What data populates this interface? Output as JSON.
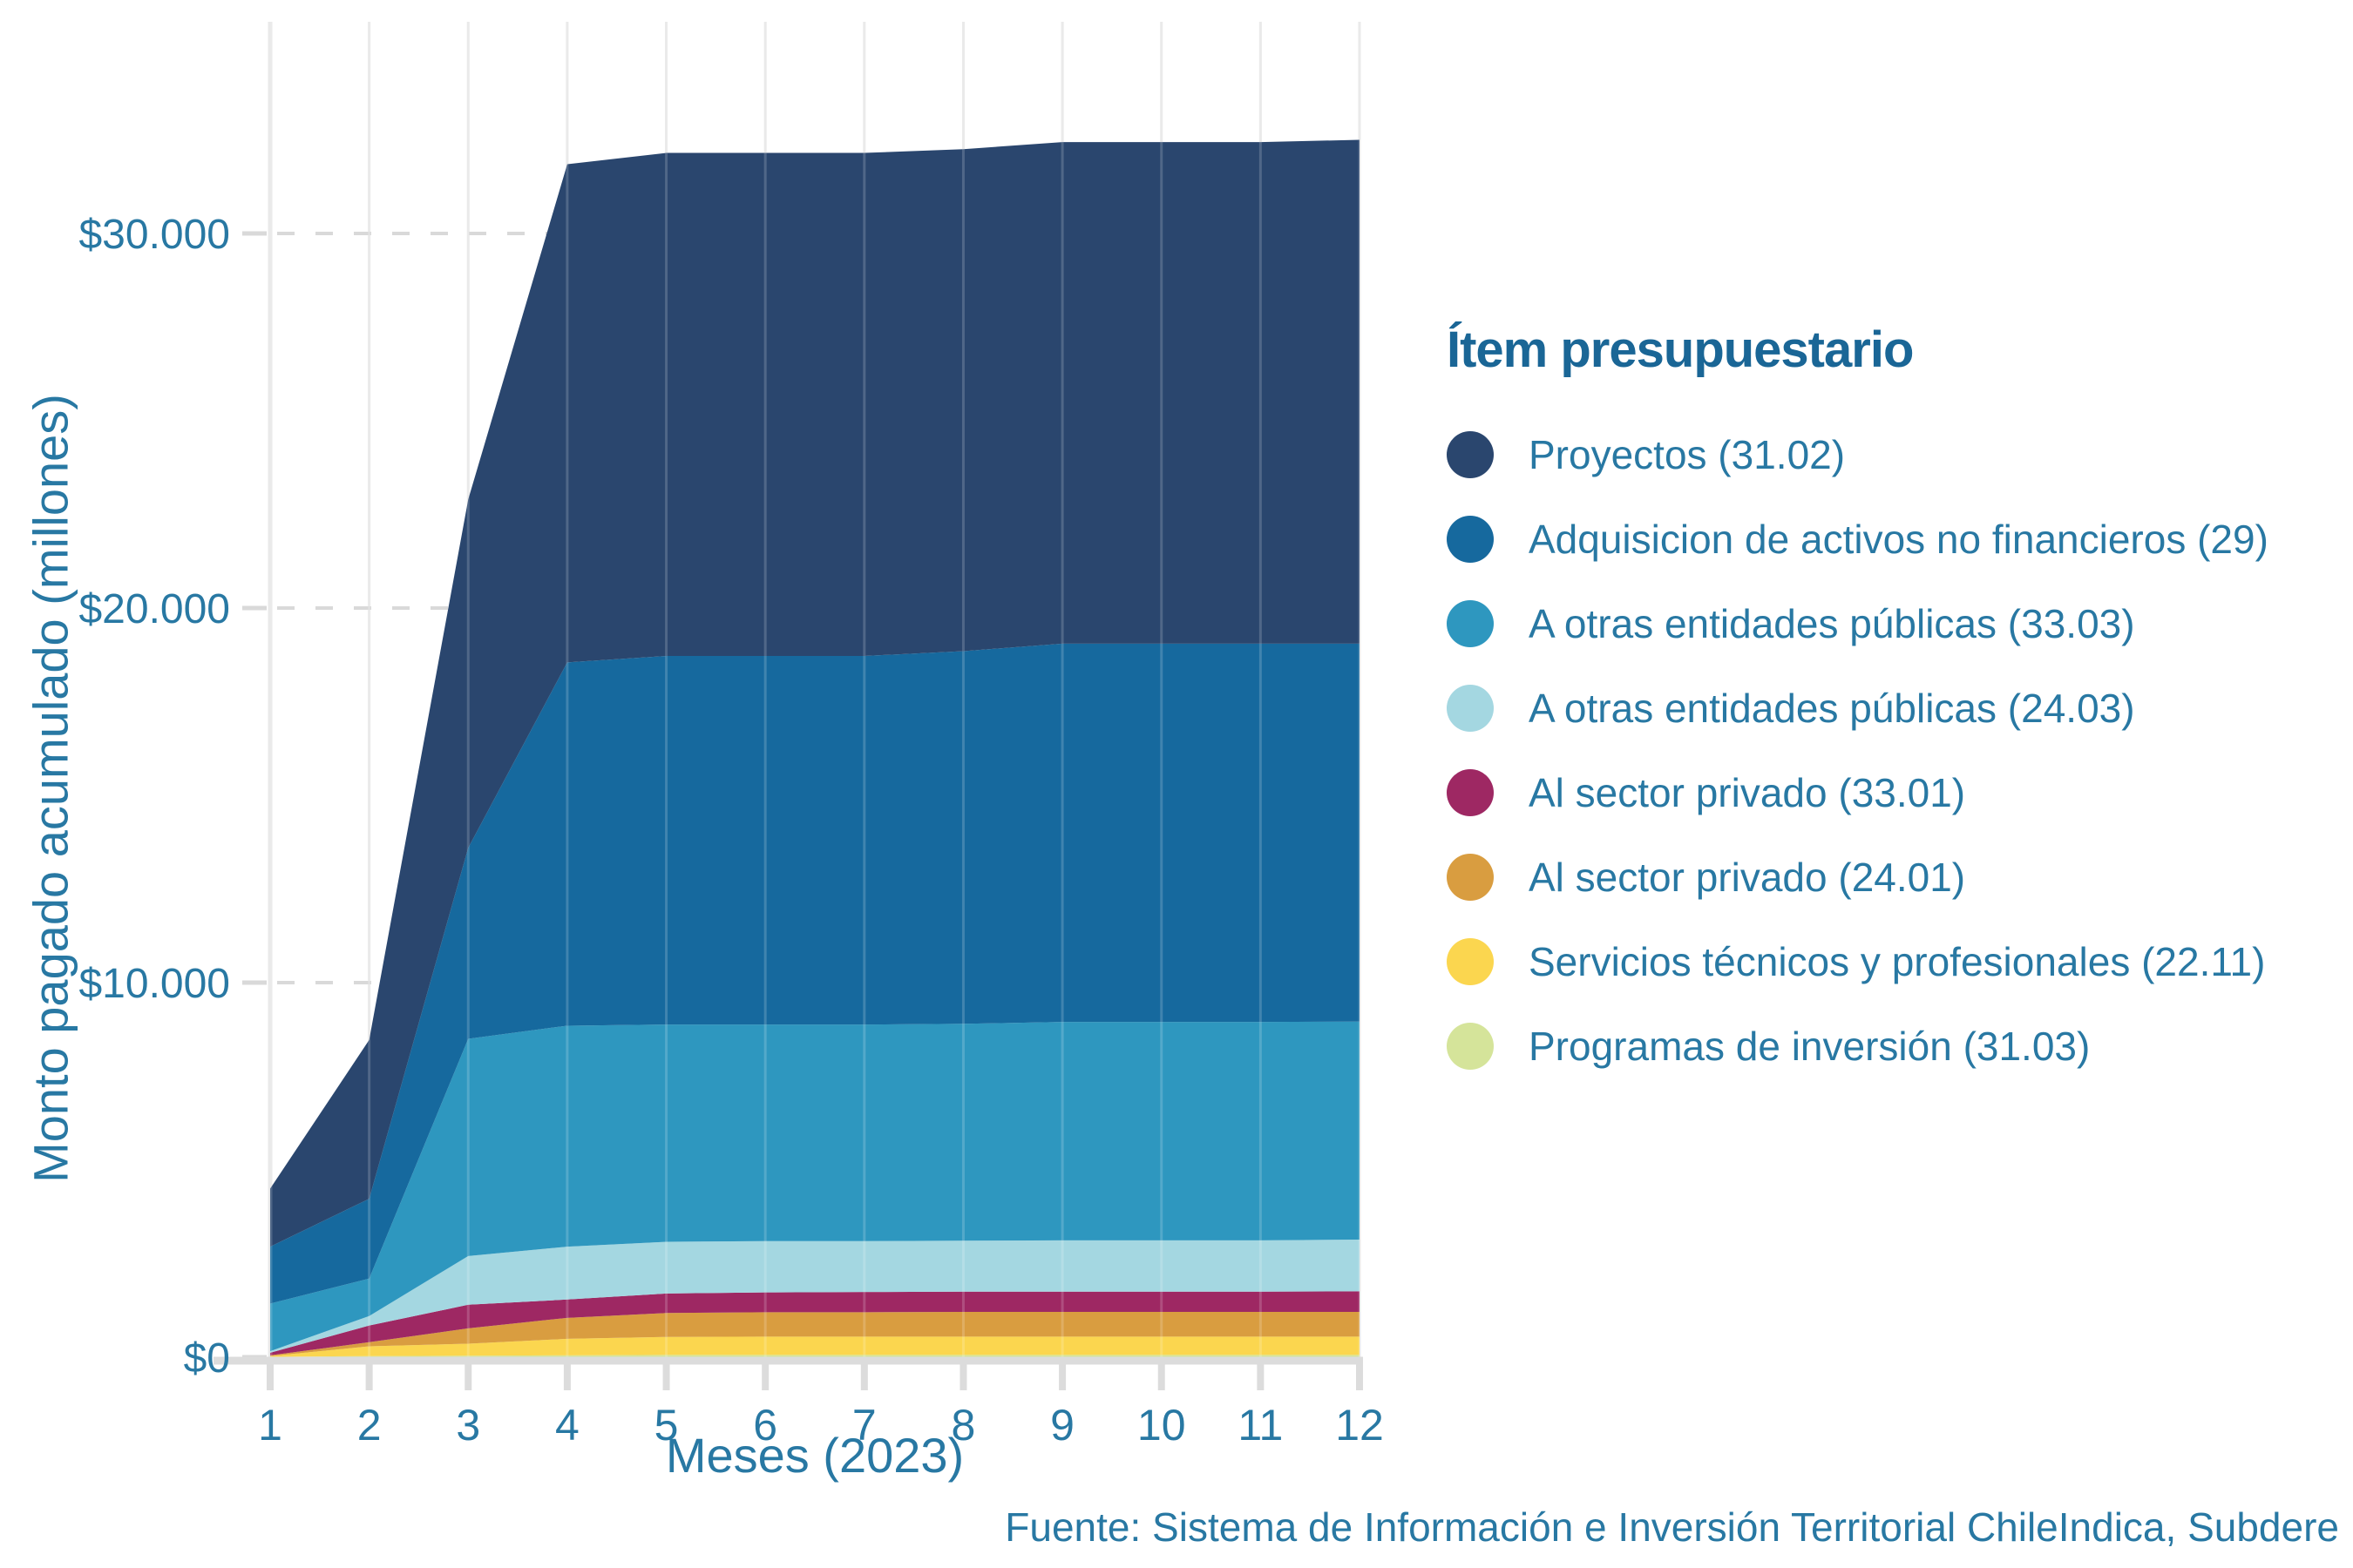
{
  "footer": {
    "text": "Fuente: Sistema de Información e Inversión Territorial ChileIndica, Subdere"
  },
  "legend": {
    "title": "Ítem presupuestario"
  },
  "theme": {
    "text_blue": "#2878a3",
    "title_blue": "#1a6696",
    "grid_vertical": "#e6e6e6",
    "grid_dash": "#d9d9d9",
    "axis_line": "#dcdcdc",
    "grid_overlay": "rgba(255,255,255,0.18)",
    "background": "#ffffff"
  },
  "chart_data": {
    "type": "area",
    "stacked": true,
    "title": "",
    "xlabel": "Meses (2023)",
    "ylabel": "Monto pagado acumulado (millones)",
    "x": [
      1,
      2,
      3,
      4,
      5,
      6,
      7,
      8,
      9,
      10,
      11,
      12
    ],
    "x_tick_labels": [
      "1",
      "2",
      "3",
      "4",
      "5",
      "6",
      "7",
      "8",
      "9",
      "10",
      "11",
      "12"
    ],
    "y_ticks": [
      {
        "label": "$0",
        "value": 0
      },
      {
        "label": "$10.000",
        "value": 10000
      },
      {
        "label": "$20.000",
        "value": 20000
      },
      {
        "label": "$30.000",
        "value": 30000
      }
    ],
    "ylim": [
      0,
      35650
    ],
    "grid": true,
    "legend_position": "right",
    "series": [
      {
        "name": "Proyectos (31.02)",
        "color": "#2a466e",
        "values": [
          1550,
          4240,
          9300,
          13300,
          13430,
          13430,
          13430,
          13400,
          13390,
          13390,
          13390,
          13450
        ]
      },
      {
        "name": "Adquisicion de activos no financieros (29)",
        "color": "#16699e",
        "values": [
          1520,
          2130,
          5100,
          9700,
          9840,
          9840,
          9840,
          9950,
          10100,
          10100,
          10100,
          10090
        ]
      },
      {
        "name": "A otras entidades públicas (33.03)",
        "color": "#2e97bf",
        "values": [
          1270,
          1000,
          5800,
          5900,
          5800,
          5780,
          5780,
          5790,
          5830,
          5830,
          5830,
          5820
        ]
      },
      {
        "name": "A otras entidades públicas (24.03)",
        "color": "#a4d7e1",
        "values": [
          40,
          255,
          1300,
          1410,
          1380,
          1370,
          1360,
          1360,
          1370,
          1370,
          1370,
          1380
        ]
      },
      {
        "name": "Al sector privado (33.01)",
        "color": "#9e2863",
        "values": [
          70,
          445,
          630,
          490,
          520,
          530,
          540,
          540,
          540,
          540,
          540,
          550
        ]
      },
      {
        "name": "Al sector privado (24.01)",
        "color": "#d99d40",
        "values": [
          20,
          110,
          410,
          560,
          640,
          650,
          650,
          660,
          660,
          660,
          660,
          660
        ]
      },
      {
        "name": "Servicios técnicos y profesionales (22.11)",
        "color": "#fbd64f",
        "values": [
          20,
          260,
          320,
          440,
          480,
          490,
          490,
          490,
          490,
          490,
          490,
          490
        ]
      },
      {
        "name": "Programas de inversión (31.03)",
        "color": "#d5e49a",
        "values": [
          10,
          30,
          40,
          50,
          60,
          60,
          60,
          60,
          60,
          60,
          60,
          60
        ]
      }
    ],
    "totals_by_month": [
      4500,
      8470,
      22900,
      31850,
      32150,
      32150,
      32150,
      32250,
      32440,
      32440,
      32440,
      32500
    ]
  }
}
